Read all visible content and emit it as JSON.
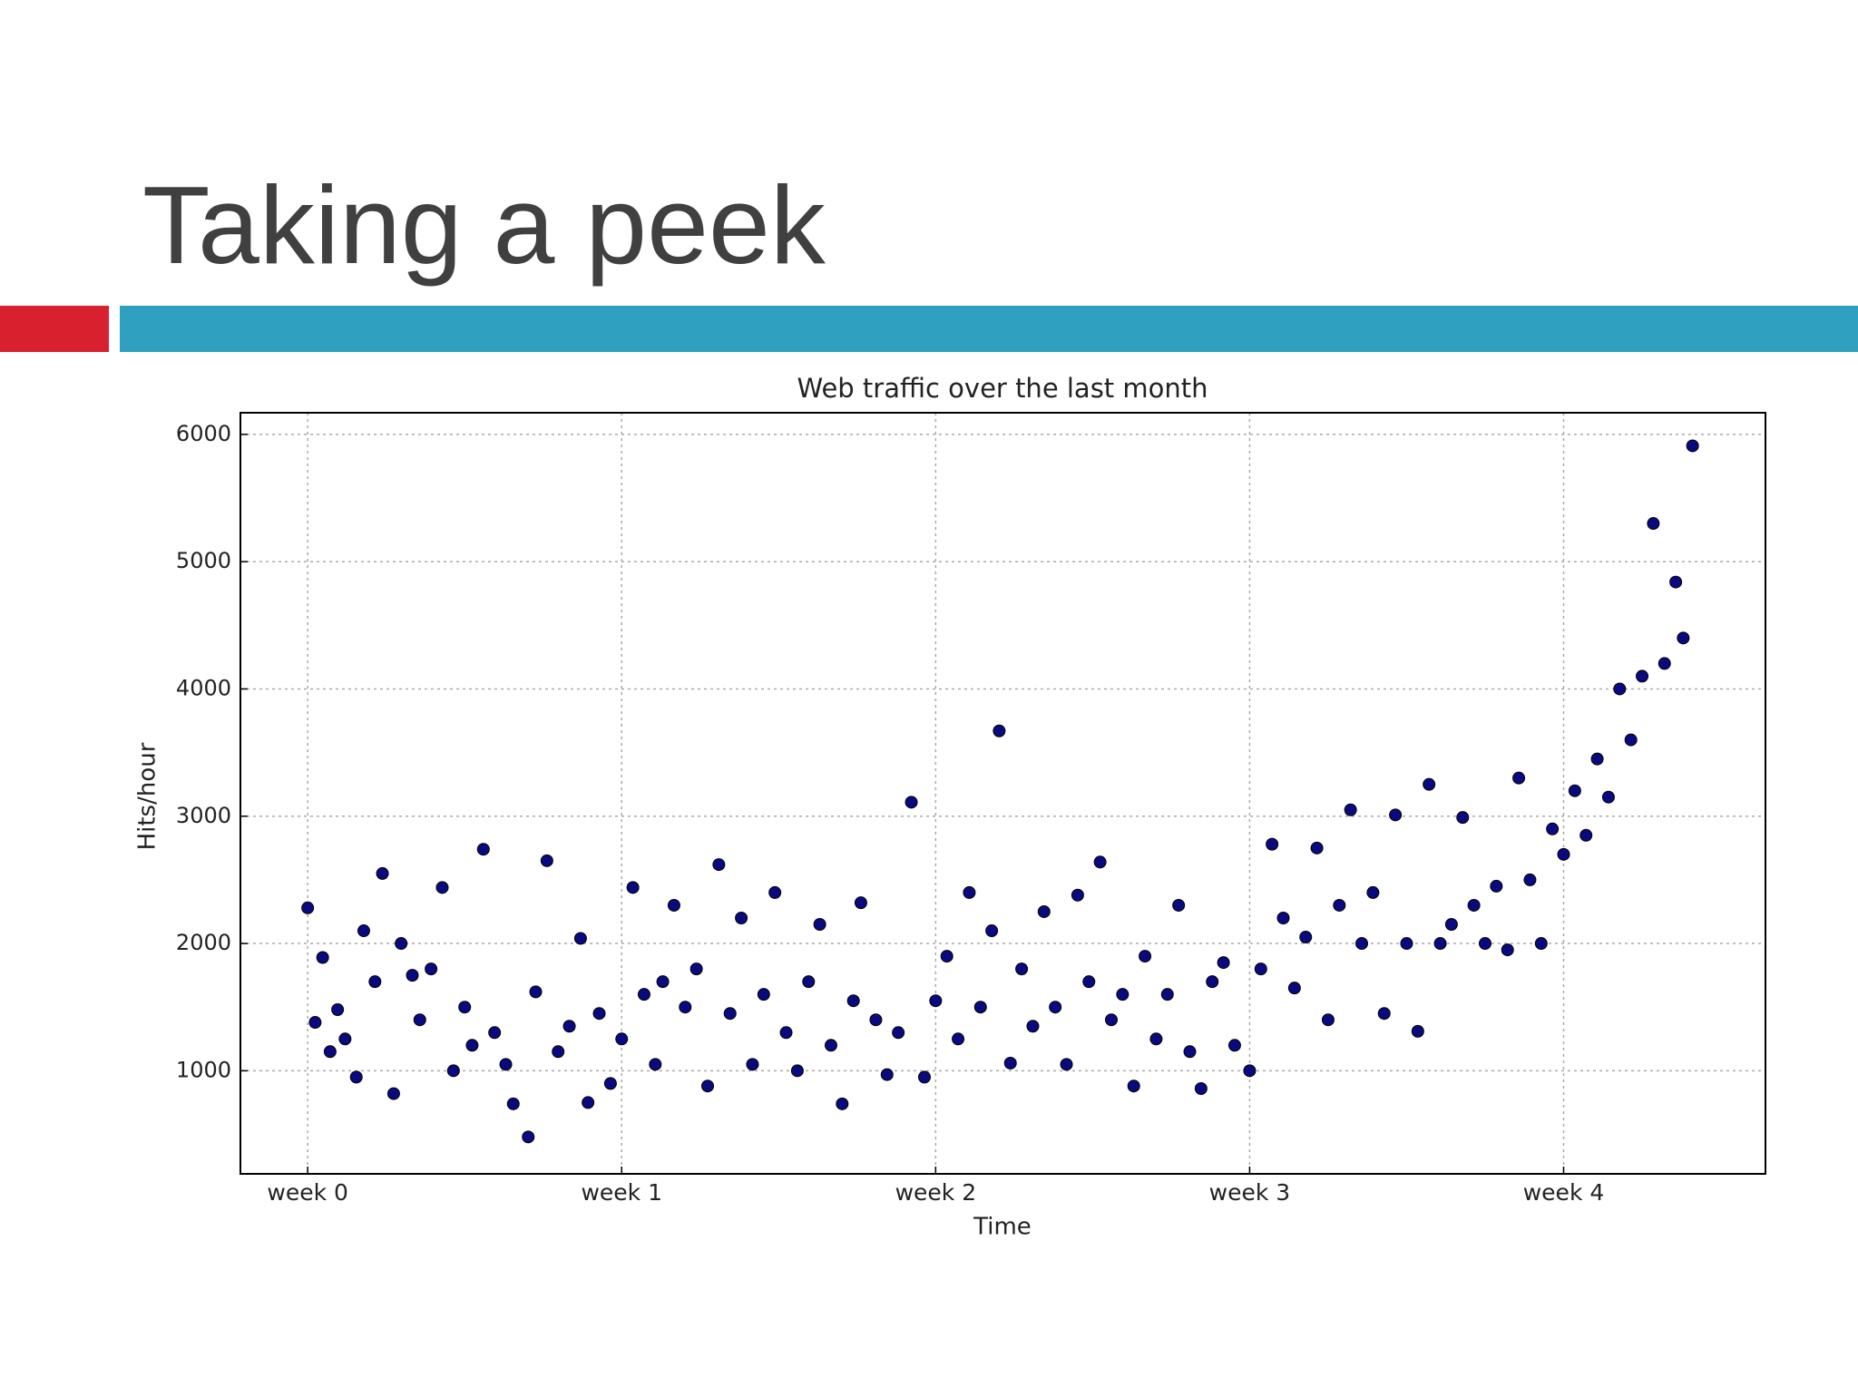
{
  "slide": {
    "title": "Taking a peek"
  },
  "chart_data": {
    "type": "scatter",
    "title": "Web traffic over the last month",
    "x_label": "Time",
    "y_label": "Hits/hour",
    "color": "#0a0a80",
    "grid": true,
    "xlim": [
      -36,
      780
    ],
    "ylim": [
      190,
      6170
    ],
    "xticks": [
      {
        "value": 0,
        "label": "week 0"
      },
      {
        "value": 168,
        "label": "week 1"
      },
      {
        "value": 336,
        "label": "week 2"
      },
      {
        "value": 504,
        "label": "week 3"
      },
      {
        "value": 672,
        "label": "week 4"
      }
    ],
    "yticks": [
      1000,
      2000,
      3000,
      4000,
      5000,
      6000
    ],
    "x": [
      0,
      4,
      8,
      12,
      16,
      20,
      26,
      30,
      36,
      40,
      46,
      50,
      56,
      60,
      66,
      72,
      78,
      84,
      88,
      94,
      100,
      106,
      110,
      118,
      122,
      128,
      134,
      140,
      146,
      150,
      156,
      162,
      168,
      174,
      180,
      186,
      190,
      196,
      202,
      208,
      214,
      220,
      226,
      232,
      238,
      244,
      250,
      256,
      262,
      268,
      274,
      280,
      286,
      292,
      296,
      304,
      310,
      316,
      323,
      330,
      336,
      342,
      348,
      354,
      360,
      366,
      370,
      376,
      382,
      388,
      394,
      400,
      406,
      412,
      418,
      424,
      430,
      436,
      442,
      448,
      454,
      460,
      466,
      472,
      478,
      484,
      490,
      496,
      504,
      510,
      516,
      522,
      528,
      534,
      540,
      546,
      552,
      558,
      564,
      570,
      576,
      582,
      588,
      594,
      600,
      606,
      612,
      618,
      624,
      630,
      636,
      642,
      648,
      654,
      660,
      666,
      672,
      678,
      684,
      690,
      696,
      702,
      708,
      714,
      720,
      726,
      732,
      736,
      741
    ],
    "values": [
      2280,
      1380,
      1890,
      1150,
      1480,
      1250,
      950,
      2100,
      1700,
      2550,
      820,
      2000,
      1750,
      1400,
      1800,
      2440,
      1000,
      1500,
      1200,
      2740,
      1300,
      1050,
      740,
      480,
      1620,
      2650,
      1150,
      1350,
      2040,
      750,
      1450,
      900,
      1250,
      2440,
      1600,
      1050,
      1700,
      2300,
      1500,
      1800,
      880,
      2620,
      1450,
      2200,
      1050,
      1600,
      2400,
      1300,
      1000,
      1700,
      2150,
      1200,
      740,
      1550,
      2320,
      1400,
      970,
      1300,
      3110,
      950,
      1550,
      1900,
      1250,
      2400,
      1500,
      2100,
      3670,
      1060,
      1800,
      1350,
      2250,
      1500,
      1050,
      2380,
      1700,
      2640,
      1400,
      1600,
      880,
      1900,
      1250,
      1600,
      2300,
      1150,
      860,
      1700,
      1850,
      1200,
      1000,
      1800,
      2780,
      2200,
      1650,
      2050,
      2750,
      1400,
      2300,
      3050,
      2000,
      2400,
      1450,
      3010,
      2000,
      1310,
      3250,
      2000,
      2150,
      2990,
      2300,
      2000,
      2450,
      1950,
      3300,
      2500,
      2000,
      2900,
      2700,
      3200,
      2850,
      3450,
      3150,
      4000,
      3600,
      4100,
      5300,
      4200,
      4840,
      4400,
      5910
    ]
  }
}
